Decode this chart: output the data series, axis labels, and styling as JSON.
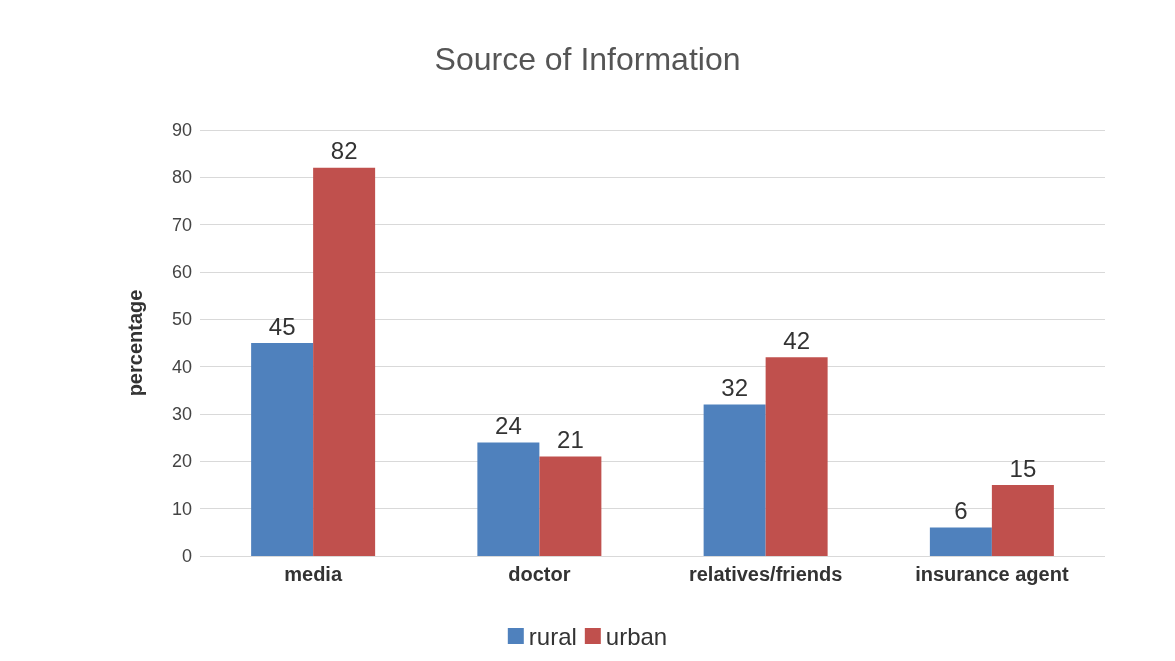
{
  "chart_data": {
    "type": "bar",
    "title": "Source of Information",
    "ylabel": "percentage",
    "categories": [
      "media",
      "doctor",
      "relatives/friends",
      "insurance agent"
    ],
    "series": [
      {
        "name": "rural",
        "color": "#4f81bd",
        "values": [
          45,
          24,
          32,
          6
        ]
      },
      {
        "name": "urban",
        "color": "#c0504d",
        "values": [
          82,
          21,
          42,
          15
        ]
      }
    ],
    "ylim": [
      0,
      90
    ],
    "yticks": [
      0,
      10,
      20,
      30,
      40,
      50,
      60,
      70,
      80,
      90
    ],
    "grid": "y",
    "legend": "bottom",
    "data_labels": true
  }
}
